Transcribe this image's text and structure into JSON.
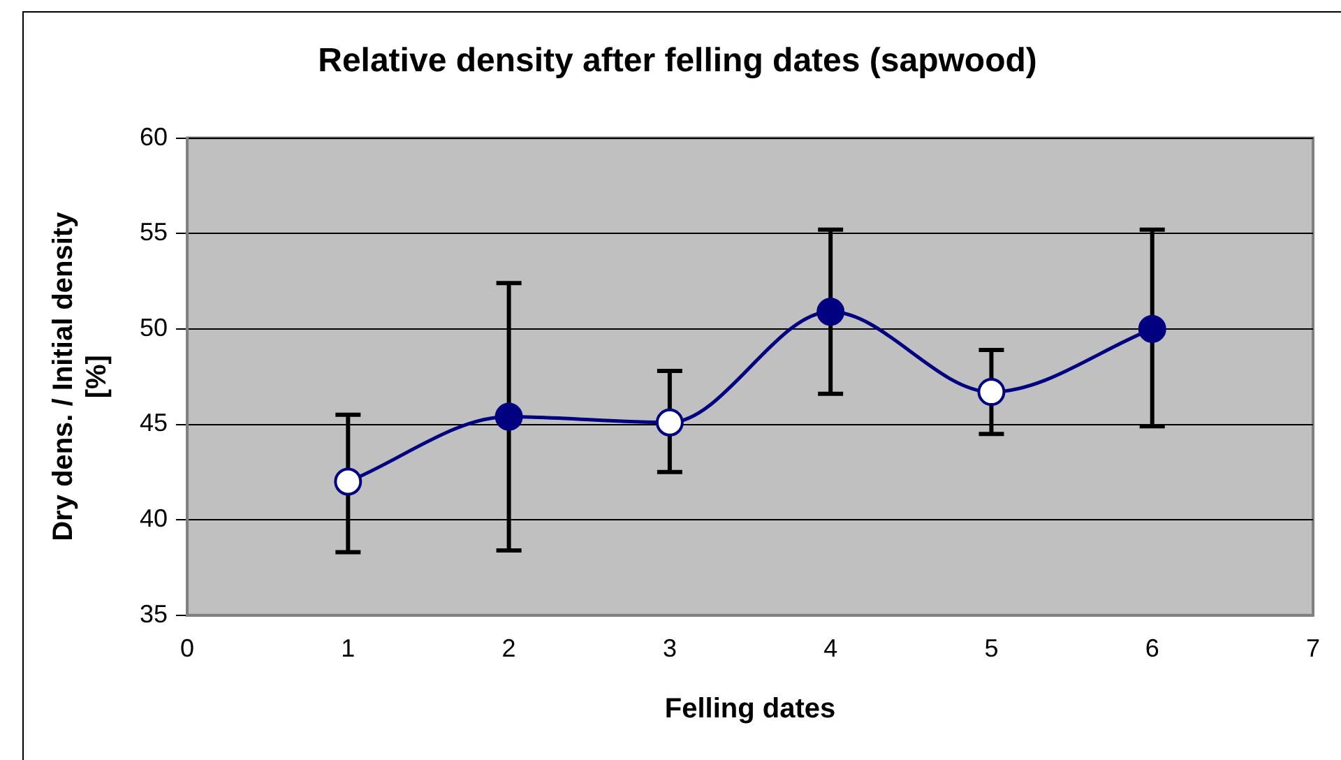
{
  "chart_data": {
    "type": "line",
    "title": "Relative density after felling dates (sapwood)",
    "xlabel": "Felling dates",
    "ylabel": "Dry dens. / Initial density [%]",
    "x": [
      1,
      2,
      3,
      4,
      5,
      6
    ],
    "series": [
      {
        "color": "#000080",
        "colors": [
          "#ffffff",
          "#000080",
          "#ffffff",
          "#000080",
          "#ffffff",
          "#000080"
        ],
        "values": [
          42.0,
          45.4,
          45.1,
          50.9,
          46.7,
          50.0
        ],
        "errors": [
          [
            38.3,
            45.5
          ],
          [
            38.4,
            52.4
          ],
          [
            42.5,
            47.8
          ],
          [
            46.6,
            55.2
          ],
          [
            44.5,
            48.9
          ],
          [
            44.9,
            55.2
          ]
        ]
      }
    ],
    "xlim": [
      0,
      7
    ],
    "xticks": [
      0,
      1,
      2,
      3,
      4,
      5,
      6,
      7
    ],
    "ylim": [
      35,
      60
    ],
    "yticks": [
      35,
      40,
      45,
      50,
      55,
      60
    ],
    "grid": "y",
    "legend": false,
    "marker": "circle",
    "line_style": "solid"
  }
}
